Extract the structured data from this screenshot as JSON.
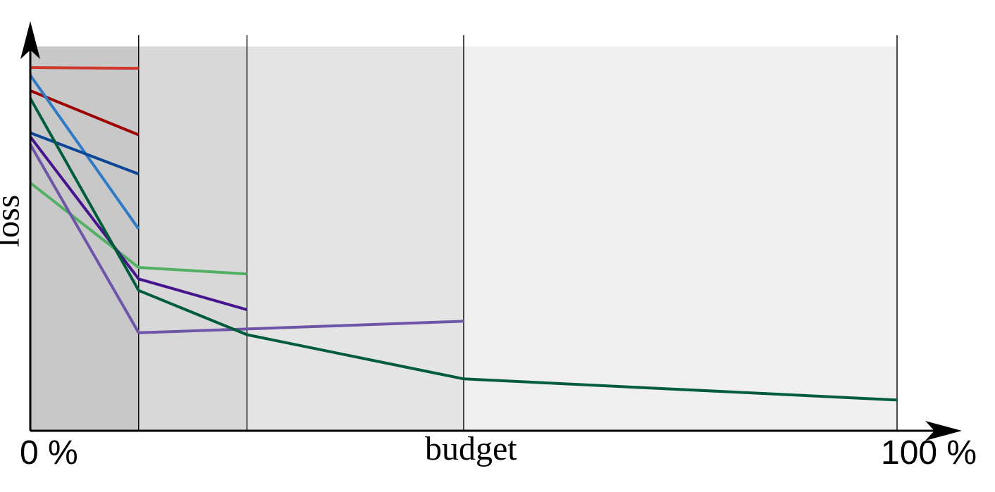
{
  "chart_data": {
    "type": "line",
    "xlabel": "budget",
    "ylabel": "loss",
    "x_ticks": [
      "0 %",
      "100 %"
    ],
    "xlim": [
      0,
      100
    ],
    "ylim": [
      0,
      100
    ],
    "grid": false,
    "bands": [
      {
        "x_start": 0,
        "x_end": 12.5,
        "color": "#c8c8c8"
      },
      {
        "x_start": 12.5,
        "x_end": 25,
        "color": "#d8d8d8"
      },
      {
        "x_start": 25,
        "x_end": 50,
        "color": "#e4e4e4"
      },
      {
        "x_start": 50,
        "x_end": 100,
        "color": "#efefef"
      }
    ],
    "rung_lines_x": [
      12.5,
      25,
      50,
      100
    ],
    "series": [
      {
        "color": "#d03a2c",
        "points": [
          [
            0,
            94.5
          ],
          [
            12.5,
            94.3
          ]
        ]
      },
      {
        "color": "#9c0000",
        "points": [
          [
            0,
            88.5
          ],
          [
            12.5,
            77.0
          ]
        ]
      },
      {
        "color": "#2e7ac4",
        "points": [
          [
            0,
            92.5
          ],
          [
            12.5,
            52.5
          ]
        ]
      },
      {
        "color": "#0c4696",
        "points": [
          [
            0,
            77.5
          ],
          [
            12.5,
            66.8
          ]
        ]
      },
      {
        "color": "#52b064",
        "points": [
          [
            0,
            64.5
          ],
          [
            12.5,
            42.5
          ],
          [
            25,
            40.8
          ]
        ]
      },
      {
        "color": "#46148c",
        "points": [
          [
            0,
            76.5
          ],
          [
            12.5,
            39.5
          ],
          [
            25,
            31.5
          ]
        ]
      },
      {
        "color": "#6e55a8",
        "points": [
          [
            0,
            74.5
          ],
          [
            12.5,
            25.5
          ],
          [
            50,
            28.5
          ]
        ]
      },
      {
        "color": "#005c3a",
        "points": [
          [
            0,
            86.5
          ],
          [
            12.5,
            36.5
          ],
          [
            25,
            25.0
          ],
          [
            50,
            13.5
          ],
          [
            100,
            8.0
          ]
        ]
      }
    ]
  }
}
